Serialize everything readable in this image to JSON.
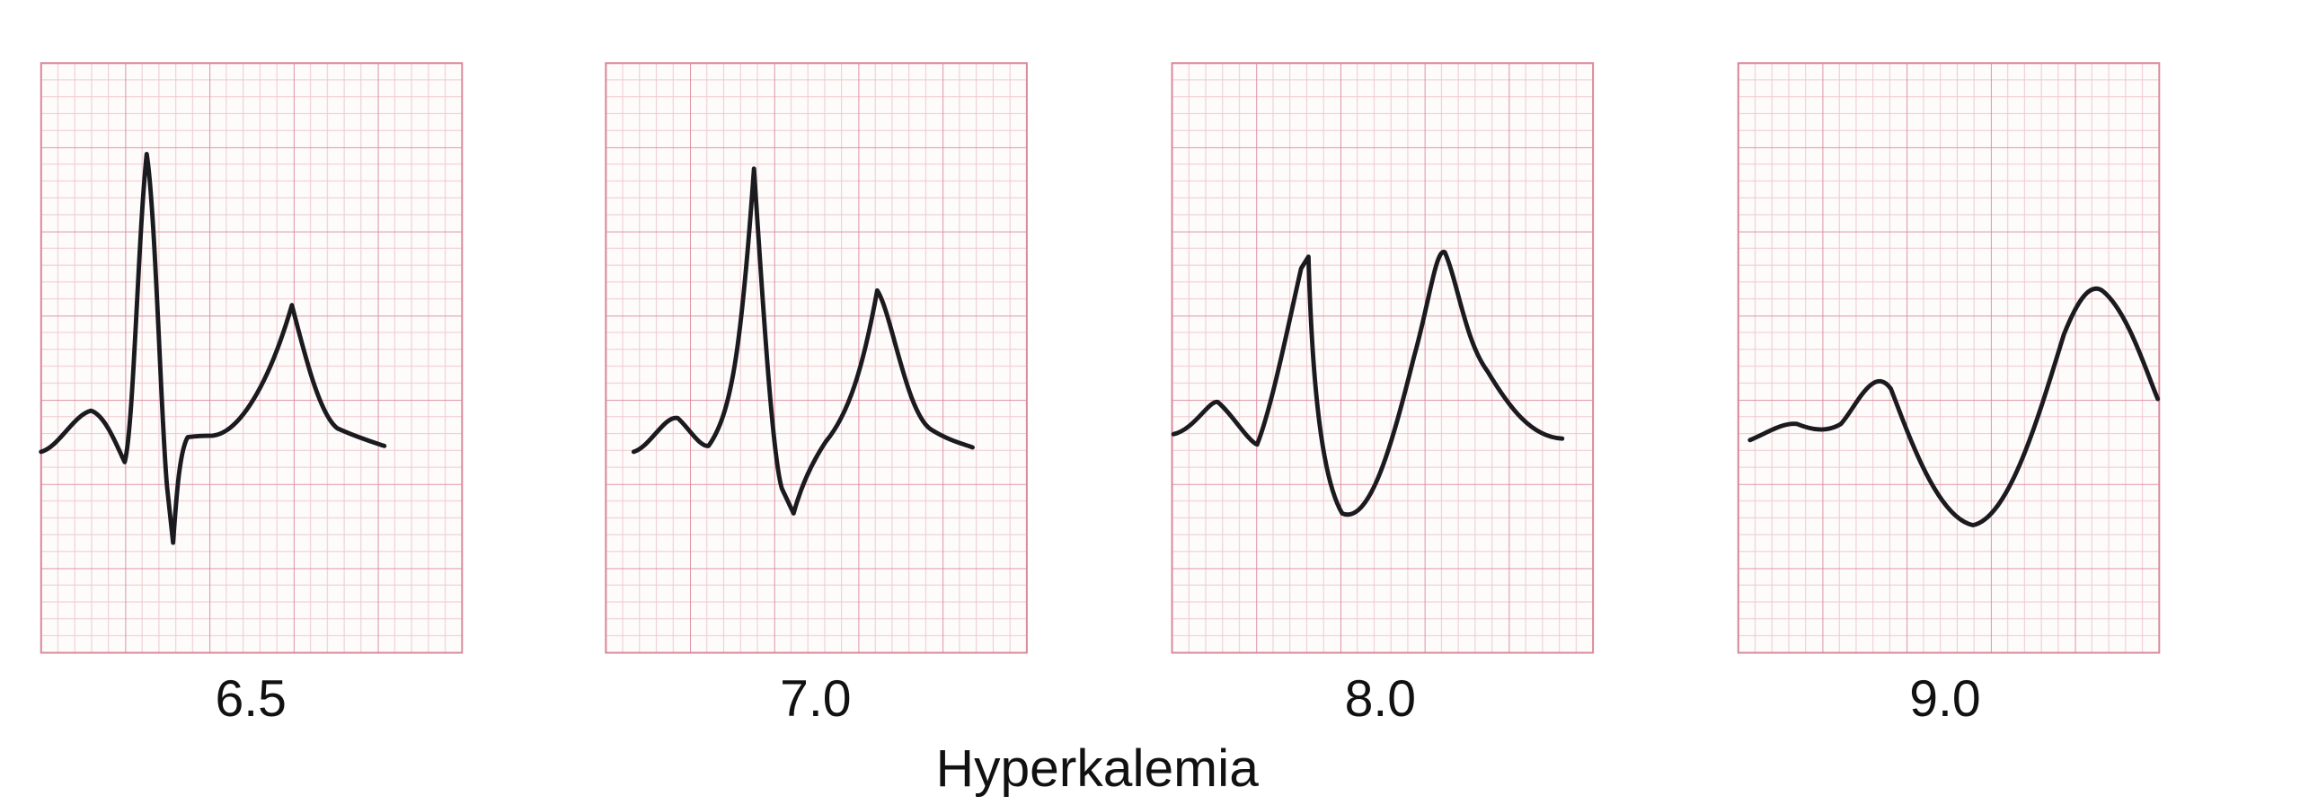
{
  "title": "Hyperkalemia",
  "panels": [
    {
      "label": "6.5"
    },
    {
      "label": "7.0"
    },
    {
      "label": "8.0"
    },
    {
      "label": "9.0"
    }
  ]
}
